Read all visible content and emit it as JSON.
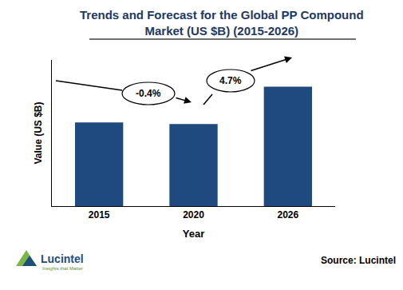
{
  "chart_data": {
    "type": "bar",
    "title": "Trends and Forecast for the Global PP Compound\nMarket (US $B) (2015-2026)",
    "x_label": "Year",
    "y_label": "Value (US $B)",
    "categories": [
      "2015",
      "2020",
      "2026"
    ],
    "values": [
      10.3,
      10.1,
      14.7
    ],
    "color": "#1f4a7f",
    "ylim": [
      0,
      18
    ],
    "yticks": [],
    "grid": false,
    "tick_labels": "x",
    "annotations": [
      "-0.4%",
      "4.7%"
    ],
    "source": "Source: Lucintel",
    "logo": "Lucintel",
    "logo_tagline": "Insights that Matter"
  }
}
